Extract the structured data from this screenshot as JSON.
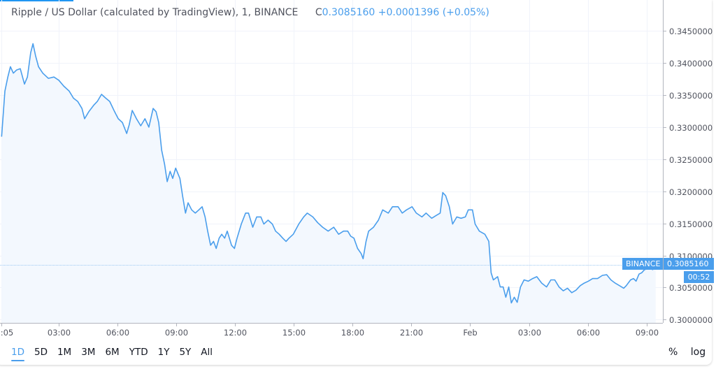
{
  "legend": {
    "title": "Ripple / US Dollar (calculated by TradingView), 1, BINANCE",
    "close_prefix": "C",
    "close": "0.3085160",
    "change": "+0.0001396",
    "change_pct": "(+0.05%)"
  },
  "colors": {
    "line": "#4a9eec",
    "fill": "#f3f8fe",
    "grid": "#f0f3fa",
    "accent": "#4a9eec"
  },
  "tags": {
    "exchange": "BINANCE",
    "price": "0.3085160",
    "countdown": "00:52"
  },
  "toolbar": {
    "ranges": [
      "1D",
      "5D",
      "1M",
      "3M",
      "6M",
      "YTD",
      "1Y",
      "5Y",
      "All"
    ],
    "active_range": "1D",
    "percent": "%",
    "log": "log"
  },
  "chart_data": {
    "type": "area",
    "title": "Ripple / US Dollar (calculated by TradingView), 1, BINANCE",
    "xlabel": "",
    "ylabel": "",
    "ylim": [
      0.2995,
      0.3498
    ],
    "xlim": [
      "00:00",
      "Feb 09:50"
    ],
    "grid": true,
    "log_scale": false,
    "y_ticks": [
      "0.3450000",
      "0.3400000",
      "0.3350000",
      "0.3300000",
      "0.3250000",
      "0.3200000",
      "0.3150000",
      "0.3100000",
      "0.3050000",
      "0.3000000"
    ],
    "x_ticks": [
      ":05",
      "03:00",
      "06:00",
      "09:00",
      "12:00",
      "15:00",
      "18:00",
      "21:00",
      "Feb",
      "03:00",
      "06:00",
      "09:00"
    ],
    "last_price": 0.308516,
    "series": [
      {
        "points": [
          [
            "00:05",
            0.3285
          ],
          [
            "00:15",
            0.3356
          ],
          [
            "00:24",
            0.3378
          ],
          [
            "00:32",
            0.3394
          ],
          [
            "00:41",
            0.3384
          ],
          [
            "00:51",
            0.3389
          ],
          [
            "01:02",
            0.3391
          ],
          [
            "01:15",
            0.3367
          ],
          [
            "01:24",
            0.3378
          ],
          [
            "01:34",
            0.3416
          ],
          [
            "01:41",
            0.343
          ],
          [
            "01:49",
            0.3411
          ],
          [
            "01:58",
            0.3394
          ],
          [
            "02:11",
            0.3384
          ],
          [
            "02:28",
            0.3376
          ],
          [
            "02:45",
            0.3378
          ],
          [
            "03:00",
            0.3373
          ],
          [
            "03:15",
            0.3364
          ],
          [
            "03:32",
            0.3356
          ],
          [
            "03:45",
            0.3345
          ],
          [
            "03:58",
            0.334
          ],
          [
            "04:11",
            0.3329
          ],
          [
            "04:19",
            0.3313
          ],
          [
            "04:32",
            0.3324
          ],
          [
            "04:47",
            0.3334
          ],
          [
            "04:58",
            0.334
          ],
          [
            "05:11",
            0.3351
          ],
          [
            "05:24",
            0.3345
          ],
          [
            "05:36",
            0.334
          ],
          [
            "05:51",
            0.3324
          ],
          [
            "06:02",
            0.3313
          ],
          [
            "06:15",
            0.3307
          ],
          [
            "06:28",
            0.329
          ],
          [
            "06:36",
            0.3304
          ],
          [
            "06:45",
            0.3326
          ],
          [
            "06:58",
            0.3313
          ],
          [
            "07:11",
            0.3302
          ],
          [
            "07:24",
            0.3313
          ],
          [
            "07:36",
            0.33
          ],
          [
            "07:49",
            0.3329
          ],
          [
            "07:58",
            0.3324
          ],
          [
            "08:06",
            0.3307
          ],
          [
            "08:15",
            0.3264
          ],
          [
            "08:24",
            0.3242
          ],
          [
            "08:32",
            0.3215
          ],
          [
            "08:41",
            0.3231
          ],
          [
            "08:49",
            0.322
          ],
          [
            "08:58",
            0.3236
          ],
          [
            "09:11",
            0.322
          ],
          [
            "09:19",
            0.3193
          ],
          [
            "09:28",
            0.3166
          ],
          [
            "09:36",
            0.3182
          ],
          [
            "09:47",
            0.3171
          ],
          [
            "09:58",
            0.3166
          ],
          [
            "10:09",
            0.3171
          ],
          [
            "10:19",
            0.3176
          ],
          [
            "10:28",
            0.316
          ],
          [
            "10:36",
            0.3138
          ],
          [
            "10:45",
            0.3116
          ],
          [
            "10:54",
            0.3122
          ],
          [
            "11:02",
            0.3111
          ],
          [
            "11:11",
            0.3127
          ],
          [
            "11:19",
            0.3133
          ],
          [
            "11:28",
            0.3127
          ],
          [
            "11:36",
            0.3138
          ],
          [
            "11:49",
            0.3116
          ],
          [
            "11:58",
            0.3111
          ],
          [
            "12:06",
            0.3127
          ],
          [
            "12:19",
            0.3149
          ],
          [
            "12:32",
            0.3166
          ],
          [
            "12:41",
            0.3166
          ],
          [
            "12:54",
            0.3144
          ],
          [
            "13:06",
            0.316
          ],
          [
            "13:19",
            0.316
          ],
          [
            "13:28",
            0.3149
          ],
          [
            "13:41",
            0.3155
          ],
          [
            "13:54",
            0.3149
          ],
          [
            "14:04",
            0.3138
          ],
          [
            "14:15",
            0.3133
          ],
          [
            "14:26",
            0.3127
          ],
          [
            "14:36",
            0.3122
          ],
          [
            "14:45",
            0.3127
          ],
          [
            "14:58",
            0.3133
          ],
          [
            "15:15",
            0.3149
          ],
          [
            "15:30",
            0.316
          ],
          [
            "15:41",
            0.3166
          ],
          [
            "15:58",
            0.316
          ],
          [
            "16:13",
            0.3151
          ],
          [
            "16:28",
            0.3144
          ],
          [
            "16:45",
            0.3138
          ],
          [
            "17:02",
            0.3144
          ],
          [
            "17:17",
            0.3133
          ],
          [
            "17:32",
            0.3138
          ],
          [
            "17:45",
            0.3138
          ],
          [
            "17:54",
            0.313
          ],
          [
            "18:04",
            0.3127
          ],
          [
            "18:15",
            0.3111
          ],
          [
            "18:26",
            0.3103
          ],
          [
            "18:32",
            0.3095
          ],
          [
            "18:41",
            0.3122
          ],
          [
            "18:49",
            0.3138
          ],
          [
            "19:04",
            0.3144
          ],
          [
            "19:19",
            0.3155
          ],
          [
            "19:32",
            0.3171
          ],
          [
            "19:49",
            0.3166
          ],
          [
            "20:02",
            0.3176
          ],
          [
            "20:19",
            0.3176
          ],
          [
            "20:32",
            0.3166
          ],
          [
            "20:45",
            0.3171
          ],
          [
            "21:02",
            0.3176
          ],
          [
            "21:15",
            0.3166
          ],
          [
            "21:32",
            0.316
          ],
          [
            "21:45",
            0.3166
          ],
          [
            "22:02",
            0.3158
          ],
          [
            "22:15",
            0.3162
          ],
          [
            "22:28",
            0.3166
          ],
          [
            "22:36",
            0.3198
          ],
          [
            "22:45",
            0.3193
          ],
          [
            "22:56",
            0.3176
          ],
          [
            "23:06",
            0.3149
          ],
          [
            "23:19",
            0.316
          ],
          [
            "23:32",
            0.3158
          ],
          [
            "23:45",
            0.316
          ],
          [
            "23:54",
            0.3171
          ],
          [
            "Feb 00:07",
            0.3171
          ],
          [
            "Feb 00:15",
            0.3149
          ],
          [
            "Feb 00:28",
            0.3138
          ],
          [
            "Feb 00:45",
            0.3133
          ],
          [
            "Feb 00:57",
            0.3122
          ],
          [
            "Feb 01:04",
            0.3073
          ],
          [
            "Feb 01:11",
            0.3062
          ],
          [
            "Feb 01:24",
            0.3067
          ],
          [
            "Feb 01:32",
            0.3051
          ],
          [
            "Feb 01:41",
            0.3051
          ],
          [
            "Feb 01:49",
            0.3035
          ],
          [
            "Feb 01:58",
            0.3051
          ],
          [
            "Feb 02:06",
            0.3026
          ],
          [
            "Feb 02:15",
            0.3035
          ],
          [
            "Feb 02:24",
            0.3027
          ],
          [
            "Feb 02:34",
            0.3051
          ],
          [
            "Feb 02:45",
            0.3062
          ],
          [
            "Feb 02:58",
            0.306
          ],
          [
            "Feb 03:11",
            0.3064
          ],
          [
            "Feb 03:24",
            0.3067
          ],
          [
            "Feb 03:39",
            0.3057
          ],
          [
            "Feb 03:54",
            0.3051
          ],
          [
            "Feb 04:07",
            0.3062
          ],
          [
            "Feb 04:19",
            0.3062
          ],
          [
            "Feb 04:32",
            0.3051
          ],
          [
            "Feb 04:45",
            0.3045
          ],
          [
            "Feb 04:58",
            0.3049
          ],
          [
            "Feb 05:11",
            0.3042
          ],
          [
            "Feb 05:24",
            0.3046
          ],
          [
            "Feb 05:37",
            0.3053
          ],
          [
            "Feb 05:49",
            0.3057
          ],
          [
            "Feb 06:02",
            0.306
          ],
          [
            "Feb 06:15",
            0.3064
          ],
          [
            "Feb 06:30",
            0.3064
          ],
          [
            "Feb 06:45",
            0.3069
          ],
          [
            "Feb 06:58",
            0.307
          ],
          [
            "Feb 07:11",
            0.3062
          ],
          [
            "Feb 07:24",
            0.3057
          ],
          [
            "Feb 07:37",
            0.3053
          ],
          [
            "Feb 07:50",
            0.3049
          ],
          [
            "Feb 07:58",
            0.3053
          ],
          [
            "Feb 08:11",
            0.3062
          ],
          [
            "Feb 08:20",
            0.3064
          ],
          [
            "Feb 08:28",
            0.306
          ],
          [
            "Feb 08:37",
            0.3071
          ],
          [
            "Feb 08:45",
            0.3073
          ],
          [
            "Feb 08:54",
            0.3078
          ],
          [
            "Feb 09:07",
            0.308
          ],
          [
            "Feb 09:19",
            0.3078
          ],
          [
            "Feb 09:28",
            0.3085
          ]
        ]
      }
    ]
  }
}
